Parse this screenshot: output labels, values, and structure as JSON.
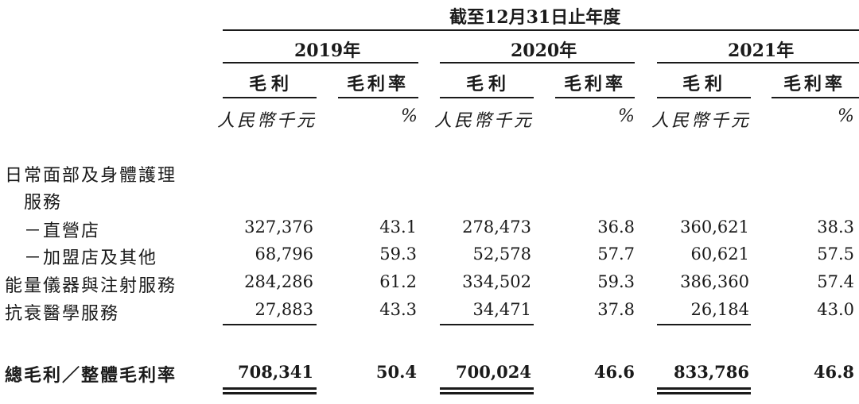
{
  "header": {
    "period_title": "截至12月31日止年度",
    "years": [
      "2019年",
      "2020年",
      "2021年"
    ],
    "col_gross_profit": "毛利",
    "col_margin": "毛利率",
    "unit_rmb": "人民幣千元",
    "unit_pct": "%"
  },
  "rows": [
    {
      "label": "日常面部及身體護理",
      "values": []
    },
    {
      "label": "服務",
      "values": []
    },
    {
      "label": "－直營店",
      "values": [
        "327,376",
        "43.1",
        "278,473",
        "36.8",
        "360,621",
        "38.3"
      ]
    },
    {
      "label": "－加盟店及其他",
      "values": [
        "68,796",
        "59.3",
        "52,578",
        "57.7",
        "60,621",
        "57.5"
      ]
    },
    {
      "label": "能量儀器與注射服務",
      "values": [
        "284,286",
        "61.2",
        "334,502",
        "59.3",
        "386,360",
        "57.4"
      ]
    },
    {
      "label": "抗衰醫學服務",
      "values": [
        "27,883",
        "43.3",
        "34,471",
        "37.8",
        "26,184",
        "43.0"
      ]
    }
  ],
  "total": {
    "label": "總毛利／整體毛利率",
    "values": [
      "708,341",
      "50.4",
      "700,024",
      "46.6",
      "833,786",
      "46.8"
    ]
  }
}
